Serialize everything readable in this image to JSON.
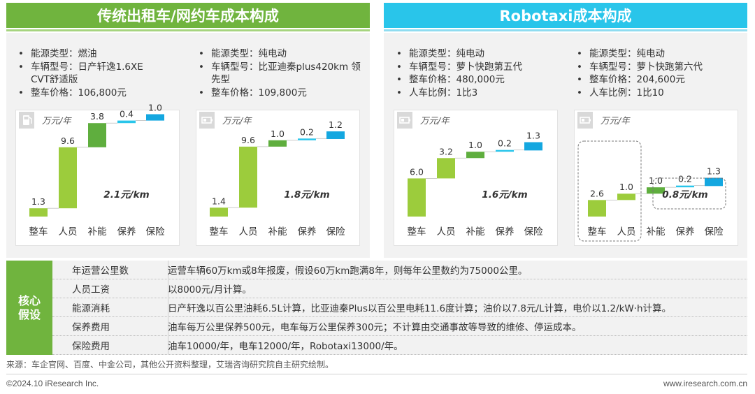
{
  "headers": {
    "traditional": "传统出租车/网约车成本构成",
    "robotaxi": "Robotaxi成本构成"
  },
  "specs": [
    [
      "能源类型：燃油",
      "车辆型号：日产轩逸1.6XE CVT舒适版",
      "整车价格：106,800元"
    ],
    [
      "能源类型：纯电动",
      "车辆型号：比亚迪秦plus420km 领先型",
      "整车价格：109,800元"
    ],
    [
      "能源类型：纯电动",
      "车辆型号：萝卜快跑第五代",
      "整车价格：480,000元",
      "人车比例：1比3"
    ],
    [
      "能源类型：纯电动",
      "车辆型号：萝卜快跑第六代",
      "整车价格：204,600元",
      "人车比例：1比10"
    ]
  ],
  "chart_data": [
    {
      "type": "bar",
      "unit": "万元/年",
      "icon": "fuel-pump-icon",
      "categories": [
        "整车",
        "人员",
        "补能",
        "保养",
        "保险"
      ],
      "values": [
        1.3,
        9.6,
        3.8,
        0.4,
        1.0
      ],
      "annotation": "2.1元/km",
      "colors": [
        "#9ccc3c",
        "#9ccc3c",
        "#5fae3e",
        "#29c5ea",
        "#14a7e0"
      ]
    },
    {
      "type": "bar",
      "unit": "万元/年",
      "icon": "battery-icon",
      "categories": [
        "整车",
        "人员",
        "补能",
        "保养",
        "保险"
      ],
      "values": [
        1.4,
        9.6,
        1.0,
        0.2,
        1.2
      ],
      "annotation": "1.8元/km",
      "colors": [
        "#9ccc3c",
        "#9ccc3c",
        "#5fae3e",
        "#29c5ea",
        "#14a7e0"
      ]
    },
    {
      "type": "bar",
      "unit": "万元/年",
      "icon": "battery-icon",
      "categories": [
        "整车",
        "人员",
        "补能",
        "保养",
        "保险"
      ],
      "values": [
        6.0,
        3.2,
        1.0,
        0.2,
        1.3
      ],
      "annotation": "1.6元/km",
      "colors": [
        "#9ccc3c",
        "#9ccc3c",
        "#5fae3e",
        "#29c5ea",
        "#14a7e0"
      ]
    },
    {
      "type": "bar",
      "unit": "万元/年",
      "icon": "battery-icon",
      "categories": [
        "整车",
        "人员",
        "补能",
        "保养",
        "保险"
      ],
      "values": [
        2.6,
        1.0,
        1.0,
        0.2,
        1.3
      ],
      "annotation": "0.8元/km",
      "highlight_first_two": true,
      "colors": [
        "#9ccc3c",
        "#9ccc3c",
        "#5fae3e",
        "#29c5ea",
        "#14a7e0"
      ]
    }
  ],
  "assumptions": {
    "side_label_line1": "核心",
    "side_label_line2": "假设",
    "rows": [
      {
        "name": "年运营公里数",
        "text": "运营车辆60万km或8年报废，假设60万km跑满8年，则每年公里数约为75000公里。"
      },
      {
        "name": "人员工资",
        "text": "以8000元/月计算。"
      },
      {
        "name": "能源消耗",
        "text": "日产轩逸以百公里油耗6.5L计算，比亚迪秦Plus以百公里电耗11.6度计算；油价以7.8元/L计算，电价以1.2/kW·h计算。"
      },
      {
        "name": "保养费用",
        "text": "油车每万公里保养500元，电车每万公里保养300元；不计算由交通事故等导致的维修、停运成本。"
      },
      {
        "name": "保险费用",
        "text": "油车10000/年，电车12000/年，Robotaxi13000/年。"
      }
    ]
  },
  "footer": {
    "source": "来源：车企官网、百度、中金公司，其他公开资料整理，艾瑞咨询研究院自主研究绘制。",
    "copyright": "©2024.10 iResearch Inc.",
    "website": "www.iresearch.com.cn"
  }
}
